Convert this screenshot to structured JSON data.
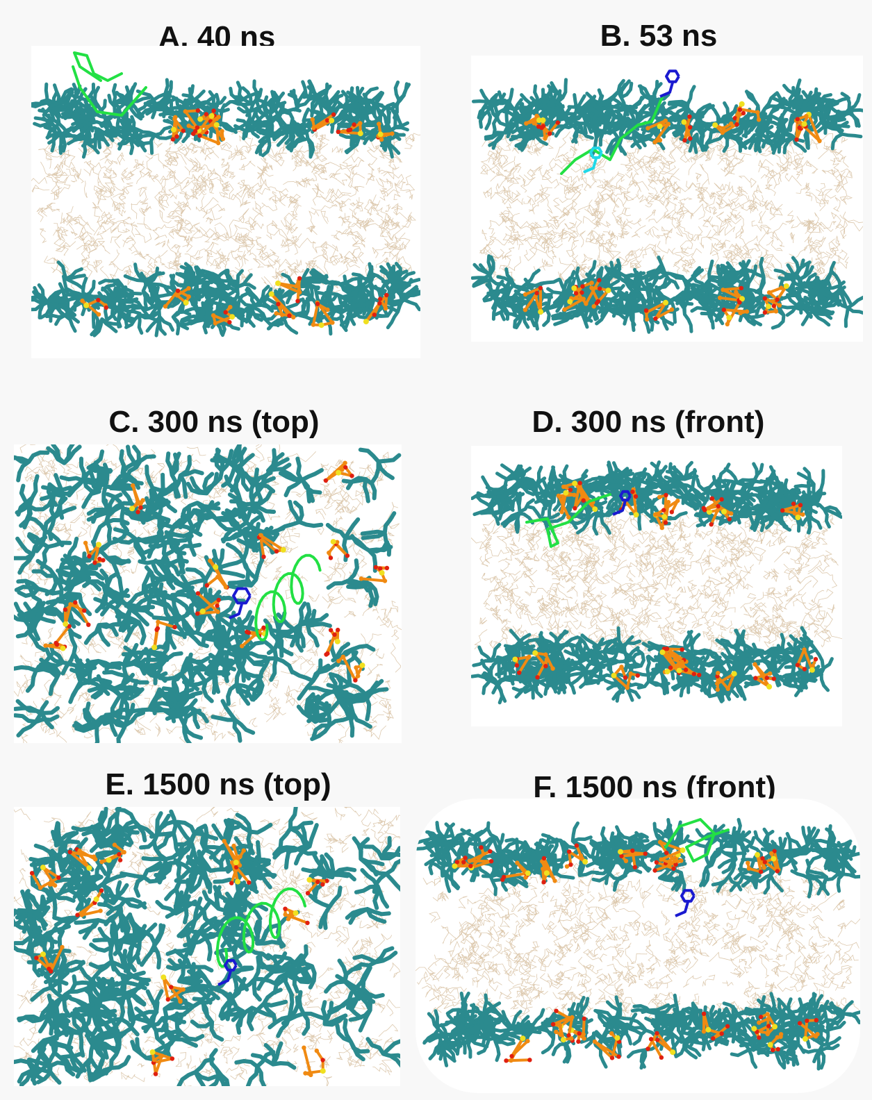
{
  "figure": {
    "panels": [
      {
        "id": "A",
        "title": "A. 40 ns",
        "view": "front"
      },
      {
        "id": "B",
        "title": "B. 53 ns",
        "view": "front"
      },
      {
        "id": "C",
        "title": "C. 300 ns (top)",
        "view": "top"
      },
      {
        "id": "D",
        "title": "D. 300 ns (front)",
        "view": "front"
      },
      {
        "id": "E",
        "title": "E. 1500 ns (top)",
        "view": "top"
      },
      {
        "id": "F",
        "title": "F. 1500 ns (front)",
        "view": "front"
      }
    ]
  },
  "colors": {
    "lipid_tails": "#d9c3a5",
    "headgroup_teal": "#2b8a8e",
    "phosphate_orange": "#f08a12",
    "phosphate_red": "#e02010",
    "phosphorus_yellow": "#f0e020",
    "peptide_green": "#22e044",
    "aromatic_blue": "#1a1ad0",
    "residue_cyan": "#20d8e8"
  }
}
